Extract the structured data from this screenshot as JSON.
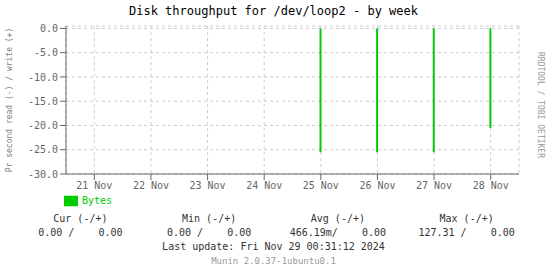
{
  "chart_data": {
    "type": "bar",
    "title": "Disk throughput for /dev/loop2 - by week",
    "ylabel": "Pr second read (-) / write (+)",
    "categories": [
      "21 Nov",
      "22 Nov",
      "23 Nov",
      "24 Nov",
      "25 Nov",
      "26 Nov",
      "27 Nov",
      "28 Nov"
    ],
    "series": [
      {
        "name": "Bytes",
        "color": "#00cc00",
        "values": [
          null,
          null,
          null,
          null,
          -25.5,
          -25.5,
          -25.5,
          -20.5
        ]
      }
    ],
    "ylim": [
      -30.0,
      0.5
    ],
    "yticks": [
      {
        "value": 0.0,
        "label": "0.0"
      },
      {
        "value": -5.0,
        "label": "-5.0"
      },
      {
        "value": -10.0,
        "label": "-10.0"
      },
      {
        "value": -15.0,
        "label": "-15.0"
      },
      {
        "value": -20.0,
        "label": "-20.0"
      },
      {
        "value": -25.0,
        "label": "-25.0"
      },
      {
        "value": -30.0,
        "label": "-30.0"
      }
    ],
    "grid": true,
    "legend": "bottom",
    "annotations": [
      [
        "RRDTOOL / TOBI OETIKER"
      ],
      [
        "Cur (-/+)",
        "Min (-/+)",
        "Avg (-/+)",
        "Max (-/+)"
      ],
      [
        "0.00 /    0.00",
        "0.00 /    0.00",
        "466.19m/    0.00",
        "127.31 /    0.00"
      ],
      [
        "Last update: Fri Nov 29 00:31:12 2024"
      ],
      [
        "Munin 2.0.37-1ubuntu0.1"
      ]
    ]
  }
}
